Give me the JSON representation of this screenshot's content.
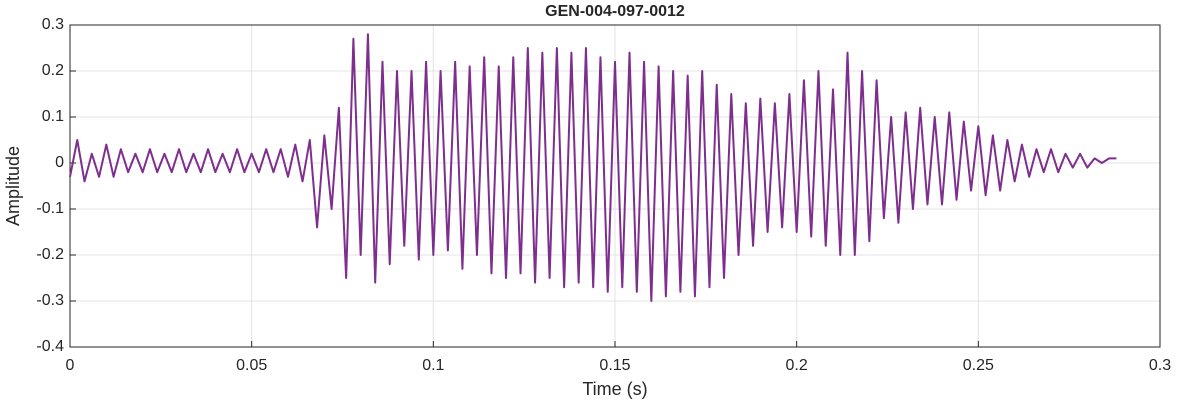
{
  "chart_data": {
    "type": "line",
    "title": "GEN-004-097-0012",
    "x_label": "Time (s)",
    "y_label": "Amplitude",
    "xlim": [
      0,
      0.3
    ],
    "ylim": [
      -0.4,
      0.3
    ],
    "xticks": [
      0,
      0.05,
      0.1,
      0.15,
      0.2,
      0.25,
      0.3
    ],
    "yticks": [
      -0.4,
      -0.3,
      -0.2,
      -0.1,
      0,
      0.1,
      0.2,
      0.3
    ],
    "grid": true,
    "x": [
      0,
      0.002,
      0.004,
      0.006,
      0.008,
      0.01,
      0.012,
      0.014,
      0.016,
      0.018,
      0.02,
      0.022,
      0.024,
      0.026,
      0.028,
      0.03,
      0.032,
      0.034,
      0.036,
      0.038,
      0.04,
      0.042,
      0.044,
      0.046,
      0.048,
      0.05,
      0.052,
      0.054,
      0.056,
      0.058,
      0.06,
      0.062,
      0.064,
      0.066,
      0.068,
      0.07,
      0.072,
      0.074,
      0.076,
      0.078,
      0.08,
      0.082,
      0.084,
      0.086,
      0.088,
      0.09,
      0.092,
      0.094,
      0.096,
      0.098,
      0.1,
      0.102,
      0.104,
      0.106,
      0.108,
      0.11,
      0.112,
      0.114,
      0.116,
      0.118,
      0.12,
      0.122,
      0.124,
      0.126,
      0.128,
      0.13,
      0.132,
      0.134,
      0.136,
      0.138,
      0.14,
      0.142,
      0.144,
      0.146,
      0.148,
      0.15,
      0.152,
      0.154,
      0.156,
      0.158,
      0.16,
      0.162,
      0.164,
      0.166,
      0.168,
      0.17,
      0.172,
      0.174,
      0.176,
      0.178,
      0.18,
      0.182,
      0.184,
      0.186,
      0.188,
      0.19,
      0.192,
      0.194,
      0.196,
      0.198,
      0.2,
      0.202,
      0.204,
      0.206,
      0.208,
      0.21,
      0.212,
      0.214,
      0.216,
      0.218,
      0.22,
      0.222,
      0.224,
      0.226,
      0.228,
      0.23,
      0.232,
      0.234,
      0.236,
      0.238,
      0.24,
      0.242,
      0.244,
      0.246,
      0.248,
      0.25,
      0.252,
      0.254,
      0.256,
      0.258,
      0.26,
      0.262,
      0.264,
      0.266,
      0.268,
      0.27,
      0.272,
      0.274,
      0.276,
      0.278,
      0.28,
      0.282,
      0.284,
      0.286,
      0.288
    ],
    "series": [
      {
        "color": "#7e2f8e",
        "values": [
          -0.03,
          0.05,
          -0.04,
          0.02,
          -0.03,
          0.04,
          -0.03,
          0.03,
          -0.02,
          0.02,
          -0.02,
          0.03,
          -0.02,
          0.02,
          -0.02,
          0.03,
          -0.02,
          0.02,
          -0.02,
          0.03,
          -0.02,
          0.02,
          -0.02,
          0.03,
          -0.02,
          0.02,
          -0.02,
          0.03,
          -0.02,
          0.03,
          -0.03,
          0.04,
          -0.04,
          0.05,
          -0.14,
          0.06,
          -0.1,
          0.12,
          -0.25,
          0.27,
          -0.2,
          0.28,
          -0.26,
          0.22,
          -0.22,
          0.2,
          -0.18,
          0.2,
          -0.21,
          0.22,
          -0.2,
          0.2,
          -0.19,
          0.22,
          -0.23,
          0.21,
          -0.2,
          0.23,
          -0.24,
          0.21,
          -0.25,
          0.23,
          -0.24,
          0.25,
          -0.26,
          0.24,
          -0.25,
          0.25,
          -0.27,
          0.24,
          -0.26,
          0.25,
          -0.27,
          0.23,
          -0.28,
          0.22,
          -0.27,
          0.24,
          -0.28,
          0.22,
          -0.3,
          0.21,
          -0.29,
          0.2,
          -0.28,
          0.19,
          -0.29,
          0.2,
          -0.27,
          0.17,
          -0.25,
          0.15,
          -0.2,
          0.13,
          -0.18,
          0.14,
          -0.15,
          0.13,
          -0.14,
          0.15,
          -0.15,
          0.18,
          -0.16,
          0.2,
          -0.18,
          0.16,
          -0.2,
          0.24,
          -0.2,
          0.2,
          -0.17,
          0.18,
          -0.12,
          0.1,
          -0.13,
          0.11,
          -0.1,
          0.12,
          -0.09,
          0.1,
          -0.09,
          0.11,
          -0.08,
          0.09,
          -0.06,
          0.08,
          -0.07,
          0.06,
          -0.06,
          0.05,
          -0.04,
          0.04,
          -0.03,
          0.03,
          -0.02,
          0.03,
          -0.02,
          0.02,
          -0.01,
          0.02,
          -0.01,
          0.01,
          0,
          0.01,
          0.01
        ]
      }
    ]
  }
}
